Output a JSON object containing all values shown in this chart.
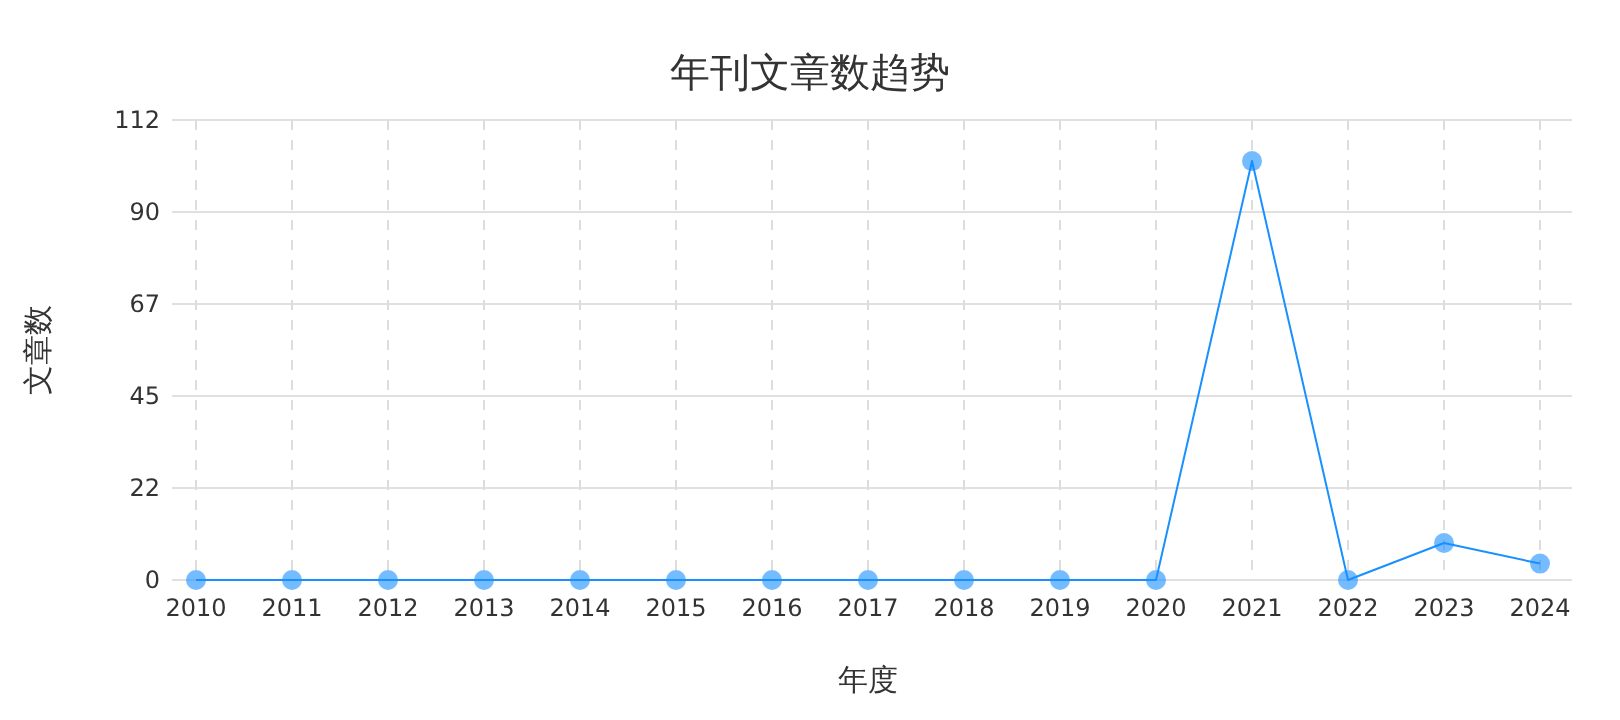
{
  "chart_data": {
    "type": "line",
    "title": "年刊文章数趋势",
    "xlabel": "年度",
    "ylabel": "文章数",
    "categories": [
      "2010",
      "2011",
      "2012",
      "2013",
      "2014",
      "2015",
      "2016",
      "2017",
      "2018",
      "2019",
      "2020",
      "2021",
      "2022",
      "2023",
      "2024"
    ],
    "series": [
      {
        "color": "#1890ff",
        "values": [
          0,
          0,
          0,
          0,
          0,
          0,
          0,
          0,
          0,
          0,
          0,
          102,
          0,
          9,
          4
        ]
      }
    ],
    "ylim": [
      0,
      112
    ],
    "yticks": [
      0,
      {
        "value": 22.4,
        "label": "22"
      },
      {
        "value": 44.8,
        "label": "45"
      },
      {
        "value": 67.2,
        "label": "67"
      },
      {
        "value": 89.6,
        "label": "90"
      },
      112
    ],
    "grid": true,
    "marker": "circle",
    "line_style": "solid"
  }
}
